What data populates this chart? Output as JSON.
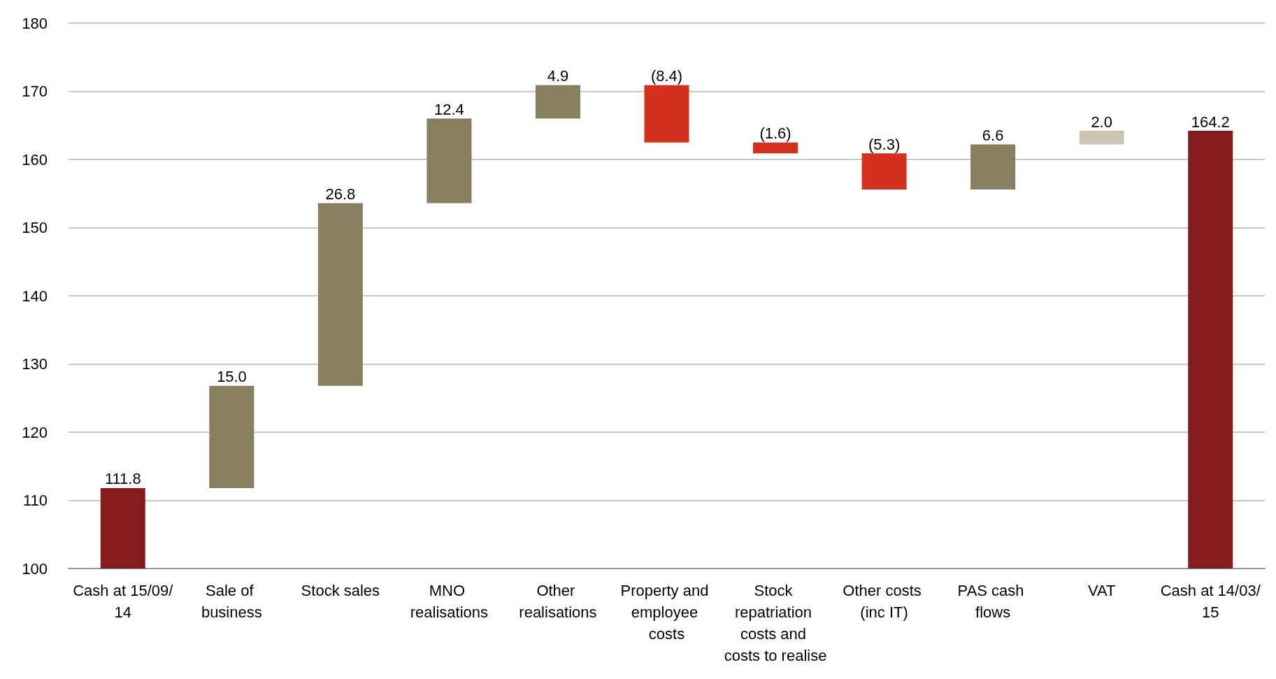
{
  "chart_data": {
    "type": "bar",
    "categories": [
      "Cash at 15/09/14",
      "Sale of business",
      "Stock sales",
      "MNO realisations",
      "Other realisations",
      "Property and employee costs",
      "Stock repatriation costs and costs to realise",
      "Other costs (inc IT)",
      "PAS cash flows",
      "VAT",
      "Cash at 14/03/15"
    ],
    "values": [
      111.8,
      15.0,
      26.8,
      12.4,
      4.9,
      -8.4,
      -1.6,
      -5.3,
      6.6,
      2.0,
      164.2
    ],
    "base": [
      null,
      111.8,
      126.8,
      153.6,
      166.0,
      170.9,
      162.5,
      160.9,
      155.6,
      162.2,
      null
    ],
    "colors": [
      "#861b1d",
      "#877f5f",
      "#877f5f",
      "#877f5f",
      "#877f5f",
      "#d5301f",
      "#d5301f",
      "#d5301f",
      "#877f5f",
      "#cbc6b4",
      "#861b1d"
    ],
    "value_labels": [
      "111.8",
      "15.0",
      "26.8",
      "12.4",
      "4.9",
      "(8.4)",
      "(1.6)",
      "(5.3)",
      "6.6",
      "2.0",
      "164.2"
    ],
    "ylim": [
      100,
      180
    ],
    "yticks": [
      100,
      110,
      120,
      130,
      140,
      150,
      160,
      170,
      180
    ],
    "grid": "y"
  }
}
